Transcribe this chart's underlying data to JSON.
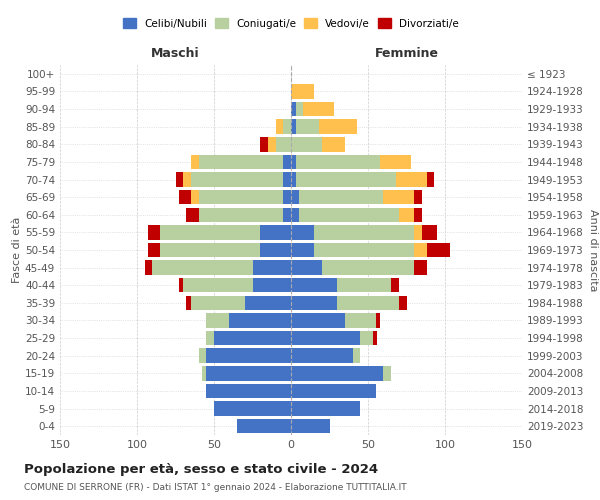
{
  "age_groups": [
    "0-4",
    "5-9",
    "10-14",
    "15-19",
    "20-24",
    "25-29",
    "30-34",
    "35-39",
    "40-44",
    "45-49",
    "50-54",
    "55-59",
    "60-64",
    "65-69",
    "70-74",
    "75-79",
    "80-84",
    "85-89",
    "90-94",
    "95-99",
    "100+"
  ],
  "birth_years": [
    "2019-2023",
    "2014-2018",
    "2009-2013",
    "2004-2008",
    "1999-2003",
    "1994-1998",
    "1989-1993",
    "1984-1988",
    "1979-1983",
    "1974-1978",
    "1969-1973",
    "1964-1968",
    "1959-1963",
    "1954-1958",
    "1949-1953",
    "1944-1948",
    "1939-1943",
    "1934-1938",
    "1929-1933",
    "1924-1928",
    "≤ 1923"
  ],
  "maschi": {
    "celibi": [
      35,
      50,
      55,
      55,
      55,
      50,
      40,
      30,
      25,
      25,
      20,
      20,
      5,
      5,
      5,
      5,
      0,
      0,
      0,
      0,
      0
    ],
    "coniugati": [
      0,
      0,
      0,
      3,
      5,
      5,
      15,
      35,
      45,
      65,
      65,
      65,
      55,
      55,
      60,
      55,
      10,
      5,
      0,
      0,
      0
    ],
    "vedovi": [
      0,
      0,
      0,
      0,
      0,
      0,
      0,
      0,
      0,
      0,
      0,
      0,
      0,
      5,
      5,
      5,
      5,
      5,
      0,
      0,
      0
    ],
    "divorziati": [
      0,
      0,
      0,
      0,
      0,
      0,
      0,
      3,
      3,
      5,
      8,
      8,
      8,
      8,
      5,
      0,
      5,
      0,
      0,
      0,
      0
    ]
  },
  "femmine": {
    "nubili": [
      25,
      45,
      55,
      60,
      40,
      45,
      35,
      30,
      30,
      20,
      15,
      15,
      5,
      5,
      3,
      3,
      0,
      3,
      3,
      0,
      0
    ],
    "coniugate": [
      0,
      0,
      0,
      5,
      5,
      8,
      20,
      40,
      35,
      60,
      65,
      65,
      65,
      55,
      65,
      55,
      20,
      15,
      5,
      0,
      0
    ],
    "vedove": [
      0,
      0,
      0,
      0,
      0,
      0,
      0,
      0,
      0,
      0,
      8,
      5,
      10,
      20,
      20,
      20,
      15,
      25,
      20,
      15,
      0
    ],
    "divorziate": [
      0,
      0,
      0,
      0,
      0,
      3,
      3,
      5,
      5,
      8,
      15,
      10,
      5,
      5,
      5,
      0,
      0,
      0,
      0,
      0,
      0
    ]
  },
  "colors": {
    "celibi": "#4472c4",
    "coniugati": "#b8cfa0",
    "vedovi": "#ffc04d",
    "divorziati": "#c00000"
  },
  "title": "Popolazione per età, sesso e stato civile - 2024",
  "subtitle": "COMUNE DI SERRONE (FR) - Dati ISTAT 1° gennaio 2024 - Elaborazione TUTTITALIA.IT",
  "xlabel_left": "Maschi",
  "xlabel_right": "Femmine",
  "ylabel_left": "Fasce di età",
  "ylabel_right": "Anni di nascita",
  "xlim": 150,
  "bg_color": "#ffffff",
  "grid_color": "#cccccc"
}
